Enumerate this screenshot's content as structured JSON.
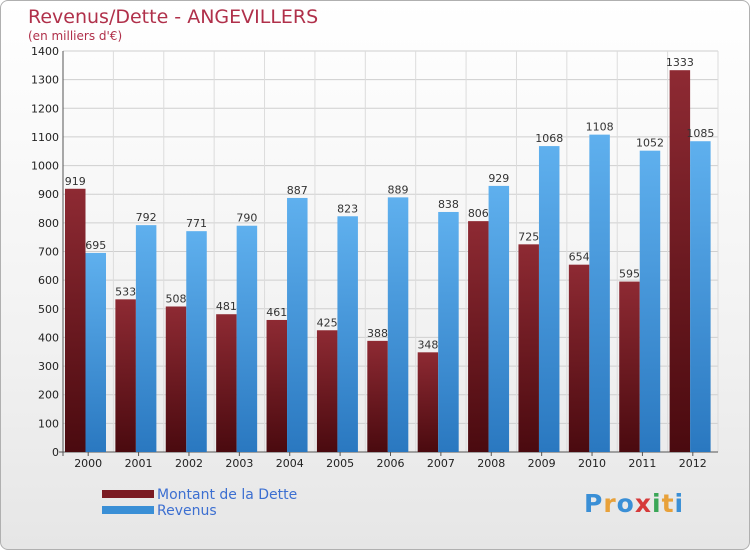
{
  "header": {
    "title": "Revenus/Dette - ANGEVILLERS",
    "subtitle": "(en milliers d'€)"
  },
  "brand": {
    "text": "Proxiti",
    "letter_colors": [
      "#3a8fd6",
      "#e8a13a",
      "#3a8fd6",
      "#d63a3a",
      "#3aa657",
      "#e8a13a",
      "#3a8fd6"
    ]
  },
  "colors": {
    "dette": "#7a1a22",
    "revenus": "#3a8fd6",
    "title": "#b0304a",
    "legend_text": "#3c6fd1"
  },
  "chart_data": {
    "type": "bar",
    "title": "Revenus/Dette - ANGEVILLERS",
    "subtitle": "(en milliers d'€)",
    "xlabel": "",
    "ylabel": "",
    "categories": [
      "2000",
      "2001",
      "2002",
      "2003",
      "2004",
      "2005",
      "2006",
      "2007",
      "2008",
      "2009",
      "2010",
      "2011",
      "2012"
    ],
    "series": [
      {
        "name": "Montant de la Dette",
        "values": [
          919,
          533,
          508,
          481,
          461,
          425,
          388,
          348,
          806,
          725,
          654,
          595,
          1333
        ]
      },
      {
        "name": "Revenus",
        "values": [
          695,
          792,
          771,
          790,
          887,
          823,
          889,
          838,
          929,
          1068,
          1108,
          1052,
          1085
        ]
      }
    ],
    "ylim": [
      0,
      1400
    ],
    "yticks": [
      0,
      100,
      200,
      300,
      400,
      500,
      600,
      700,
      800,
      900,
      1000,
      1100,
      1200,
      1300,
      1400
    ],
    "grid": true,
    "legend_position": "bottom-left"
  }
}
